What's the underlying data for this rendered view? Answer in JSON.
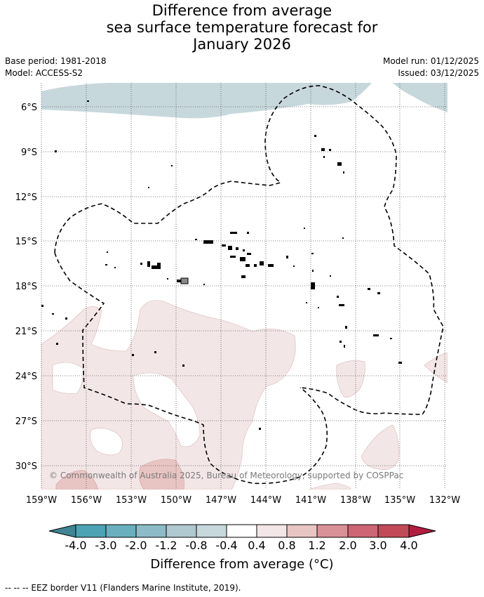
{
  "title": {
    "line1": "Difference from average",
    "line2": "sea surface temperature forecast for",
    "line3": "January 2026"
  },
  "meta": {
    "base_period": "Base period: 1981-2018",
    "model": "Model: ACCESS-S2",
    "model_run": "Model run: 01/12/2025",
    "issued": "Issued: 03/12/2025"
  },
  "map": {
    "lat_labels": [
      "6°S",
      "9°S",
      "12°S",
      "15°S",
      "18°S",
      "21°S",
      "24°S",
      "27°S",
      "30°S"
    ],
    "lon_labels": [
      "159°W",
      "156°W",
      "153°W",
      "150°W",
      "147°W",
      "144°W",
      "141°W",
      "138°W",
      "135°W",
      "132°W"
    ],
    "copyright": "© Commonwealth of Australia 2025, Bureau of Meteorology, supported by COSPPac",
    "colors": {
      "neg_0_4_to_0_8": "#c7d8dc",
      "pos_0_4_to_0_8": "#f3e6e6",
      "pos_0_8_to_1_2": "#e8c5c3"
    }
  },
  "colorbar": {
    "ticks": [
      "-4.0",
      "-3.0",
      "-2.0",
      "-1.2",
      "-0.8",
      "-0.4",
      "0.4",
      "0.8",
      "1.2",
      "2.0",
      "3.0",
      "4.0"
    ],
    "colors": [
      "#3f8594",
      "#4ba3b3",
      "#6aafbd",
      "#8dbcc7",
      "#b0c8cf",
      "#c7d8dc",
      "#ffffff",
      "#f3e6e6",
      "#e8c5c3",
      "#d99198",
      "#cd6574",
      "#c14a59",
      "#b11e3f"
    ],
    "label": "Difference from average (°C)"
  },
  "footer": {
    "legend_text": "--  --  -- EEZ border V11 (Flanders Marine Institute, 2019)."
  }
}
